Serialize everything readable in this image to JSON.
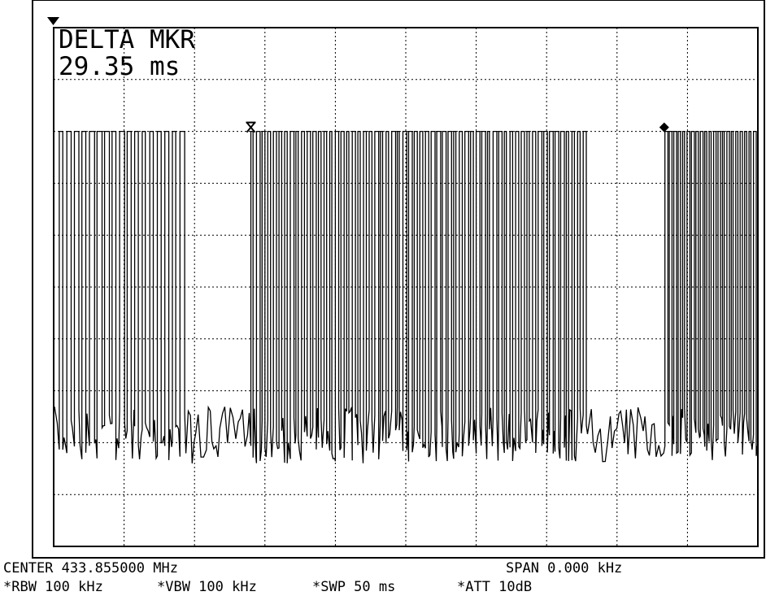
{
  "marker_readout": {
    "label": "DELTA MKR",
    "value": "29.35 ms"
  },
  "footer": {
    "center": "CENTER 433.855000 MHz",
    "span": "SPAN 0.000 kHz",
    "rbw": "*RBW 100 kHz",
    "vbw": "*VBW 100 kHz",
    "swp": "*SWP 50 ms",
    "att": "*ATT 10dB"
  },
  "chart_data": {
    "type": "line",
    "title": "",
    "xlabel": "",
    "ylabel": "",
    "x_unit": "ms",
    "xlim": [
      0,
      50
    ],
    "y_levels": {
      "high_div": 2,
      "noise_floor_div": 7.8
    },
    "grid": true,
    "grid_divisions": {
      "x": 10,
      "y": 10
    },
    "bursts": [
      {
        "start_ms": 0.4,
        "end_ms": 9.5,
        "pulses": 17
      },
      {
        "start_ms": 14.0,
        "end_ms": 38.0,
        "pulses": 60
      },
      {
        "start_ms": 43.4,
        "end_ms": 50.0,
        "pulses": 21
      }
    ],
    "markers": [
      {
        "type": "reference",
        "x_ms": 14.0,
        "symbol": "x"
      },
      {
        "type": "delta",
        "x_ms": 43.35,
        "symbol": "diamond"
      }
    ],
    "reference_level_marker": {
      "symbol": "triangle-down"
    },
    "delta_ms": 29.35
  }
}
